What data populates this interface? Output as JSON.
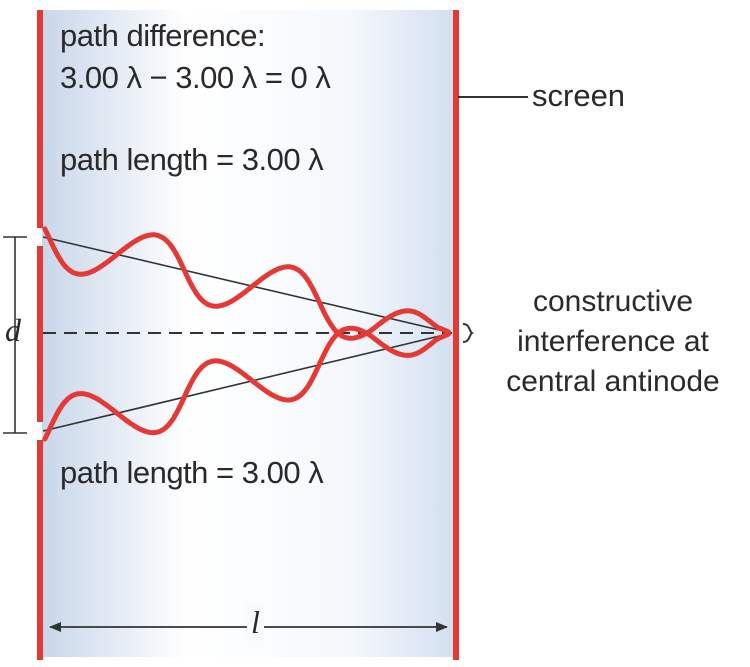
{
  "labels": {
    "path_difference_title": "path difference:",
    "path_difference_equation": "3.00 λ − 3.00 λ = 0 λ",
    "path_length_top": "path length = 3.00 λ",
    "path_length_bottom": "path length = 3.00 λ",
    "screen": "screen",
    "result_line1": "constructive",
    "result_line2": "interference at",
    "result_line3": "central antinode",
    "slit_separation": "d",
    "screen_distance": "l"
  },
  "colors": {
    "barrier": "#e53935",
    "wave": "#e53935",
    "panel_edge": "#c9d7ea",
    "panel_center": "#ffffff",
    "line": "#333333"
  }
}
